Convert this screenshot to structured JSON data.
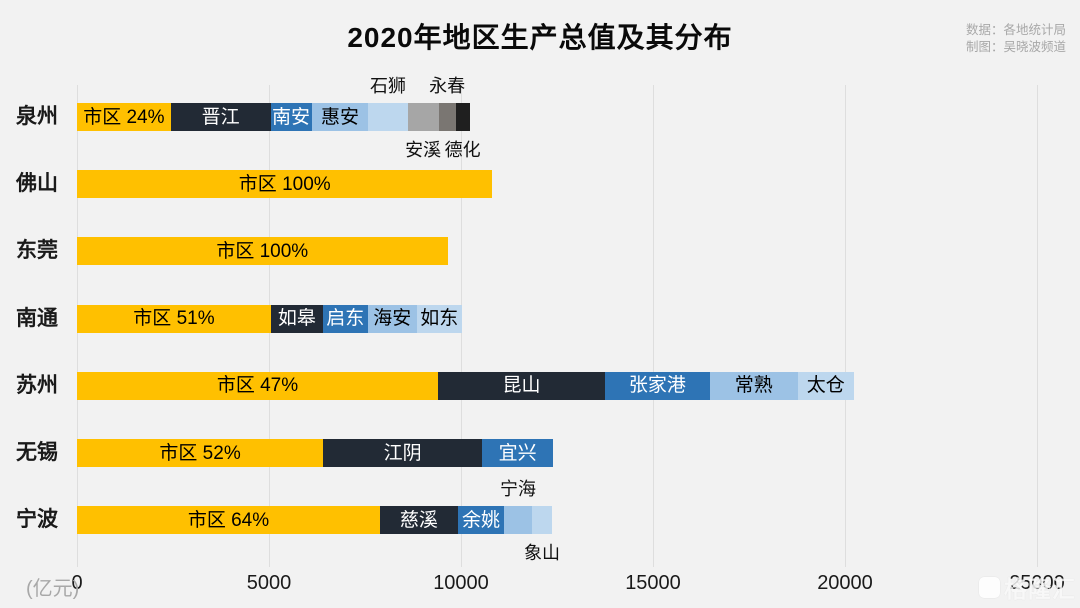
{
  "title": "2020年地区生产总值及其分布",
  "credits": {
    "data_source": "数据：各地统计局",
    "author": "制图：吴晓波频道"
  },
  "watermark": "格隆汇",
  "colors": {
    "background": "#F2F2F2",
    "gridline": "#DEDEDE",
    "yellow": "#FFC000",
    "navy": "#222A35",
    "blue": "#2E74B5",
    "light_blue": "#9CC2E5",
    "pale_blue": "#BDD7EE",
    "gray": "#A6A6A6",
    "dark_gray": "#7A7672",
    "near_black": "#1F1F1F"
  },
  "axis": {
    "unit_label": "(亿元)",
    "ticks": [
      0,
      5000,
      10000,
      15000,
      20000,
      25000
    ]
  },
  "chart_data": {
    "type": "bar",
    "orientation": "horizontal",
    "stacked": true,
    "unit": "亿元",
    "xlim": [
      0,
      25000
    ],
    "grid": "vertical",
    "title": "2020年地区生产总值及其分布",
    "categories": [
      "泉州",
      "佛山",
      "东莞",
      "南通",
      "苏州",
      "无锡",
      "宁波"
    ],
    "rows": [
      {
        "city": "泉州",
        "segments": [
          {
            "name": "市区",
            "label": "市区 24%",
            "share": "24%",
            "value": 2440,
            "color": "yellow",
            "text": "dark",
            "label_pos": "inside"
          },
          {
            "name": "晋江",
            "label": "晋江",
            "value": 2600,
            "color": "navy",
            "text": "light",
            "label_pos": "inside"
          },
          {
            "name": "南安",
            "label": "南安",
            "value": 1070,
            "color": "blue",
            "text": "light",
            "label_pos": "inside"
          },
          {
            "name": "惠安",
            "label": "惠安",
            "value": 1480,
            "color": "light_blue",
            "text": "dark",
            "label_pos": "inside"
          },
          {
            "name": "石狮",
            "label": "石狮",
            "value": 1020,
            "color": "pale_blue",
            "text": "dark",
            "label_pos": "above"
          },
          {
            "name": "安溪",
            "label": "安溪",
            "value": 810,
            "color": "gray",
            "text": "dark",
            "label_pos": "below"
          },
          {
            "name": "永春",
            "label": "永春",
            "value": 440,
            "color": "dark_gray",
            "text": "dark",
            "label_pos": "above"
          },
          {
            "name": "德化",
            "label": "德化",
            "value": 370,
            "color": "near_black",
            "text": "dark",
            "label_pos": "below"
          }
        ]
      },
      {
        "city": "佛山",
        "segments": [
          {
            "name": "市区",
            "label": "市区 100%",
            "share": "100%",
            "value": 10820,
            "color": "yellow",
            "text": "dark",
            "label_pos": "inside"
          }
        ]
      },
      {
        "city": "东莞",
        "segments": [
          {
            "name": "市区",
            "label": "市区 100%",
            "share": "100%",
            "value": 9650,
            "color": "yellow",
            "text": "dark",
            "label_pos": "inside"
          }
        ]
      },
      {
        "city": "南通",
        "segments": [
          {
            "name": "市区",
            "label": "市区 51%",
            "share": "51%",
            "value": 5050,
            "color": "yellow",
            "text": "dark",
            "label_pos": "inside"
          },
          {
            "name": "如皋",
            "label": "如皋",
            "value": 1350,
            "color": "navy",
            "text": "light",
            "label_pos": "inside"
          },
          {
            "name": "启东",
            "label": "启东",
            "value": 1170,
            "color": "blue",
            "text": "light",
            "label_pos": "inside"
          },
          {
            "name": "海安",
            "label": "海安",
            "value": 1280,
            "color": "light_blue",
            "text": "dark",
            "label_pos": "inside"
          },
          {
            "name": "如东",
            "label": "如东",
            "value": 1170,
            "color": "pale_blue",
            "text": "dark",
            "label_pos": "inside"
          }
        ]
      },
      {
        "city": "苏州",
        "segments": [
          {
            "name": "市区",
            "label": "市区 47%",
            "share": "47%",
            "value": 9400,
            "color": "yellow",
            "text": "dark",
            "label_pos": "inside"
          },
          {
            "name": "昆山",
            "label": "昆山",
            "value": 4350,
            "color": "navy",
            "text": "light",
            "label_pos": "inside"
          },
          {
            "name": "张家港",
            "label": "张家港",
            "value": 2730,
            "color": "blue",
            "text": "light",
            "label_pos": "inside"
          },
          {
            "name": "常熟",
            "label": "常熟",
            "value": 2290,
            "color": "light_blue",
            "text": "dark",
            "label_pos": "inside"
          },
          {
            "name": "太仓",
            "label": "太仓",
            "value": 1460,
            "color": "pale_blue",
            "text": "dark",
            "label_pos": "inside"
          }
        ]
      },
      {
        "city": "无锡",
        "segments": [
          {
            "name": "市区",
            "label": "市区 52%",
            "share": "52%",
            "value": 6410,
            "color": "yellow",
            "text": "dark",
            "label_pos": "inside"
          },
          {
            "name": "江阴",
            "label": "江阴",
            "value": 4140,
            "color": "navy",
            "text": "light",
            "label_pos": "inside"
          },
          {
            "name": "宜兴",
            "label": "宜兴",
            "value": 1850,
            "color": "blue",
            "text": "light",
            "label_pos": "inside"
          }
        ]
      },
      {
        "city": "宁波",
        "segments": [
          {
            "name": "市区",
            "label": "市区 64%",
            "share": "64%",
            "value": 7890,
            "color": "yellow",
            "text": "dark",
            "label_pos": "inside"
          },
          {
            "name": "慈溪",
            "label": "慈溪",
            "value": 2030,
            "color": "navy",
            "text": "light",
            "label_pos": "inside"
          },
          {
            "name": "余姚",
            "label": "余姚",
            "value": 1200,
            "color": "blue",
            "text": "light",
            "label_pos": "inside"
          },
          {
            "name": "宁海",
            "label": "宁海",
            "value": 730,
            "color": "light_blue",
            "text": "dark",
            "label_pos": "above"
          },
          {
            "name": "象山",
            "label": "象山",
            "value": 520,
            "color": "pale_blue",
            "text": "dark",
            "label_pos": "below"
          }
        ]
      }
    ]
  }
}
